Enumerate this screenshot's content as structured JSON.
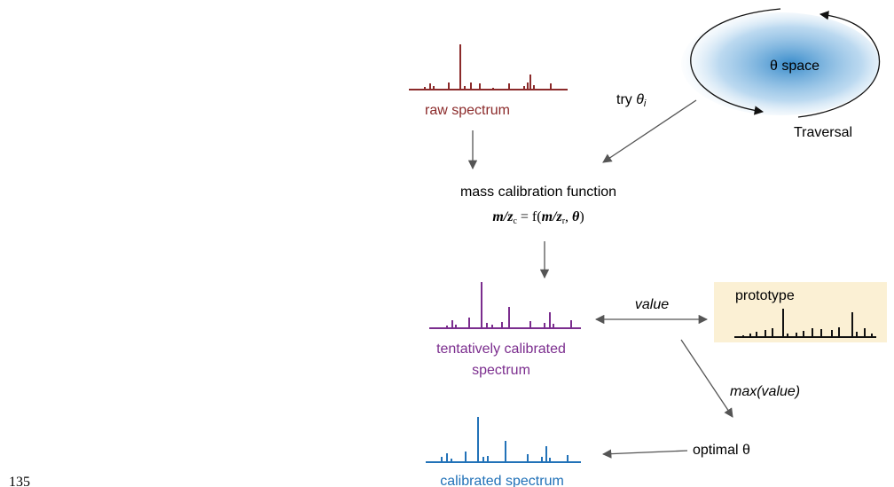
{
  "raw_label": "raw spectrum",
  "try_label": {
    "text": "try",
    "symbol": "θ",
    "subscript": "i"
  },
  "space_label": "θ space",
  "traversal_label": "Traversal",
  "function_label": "mass calibration function",
  "formula": [
    "m/z",
    "c",
    " = f(",
    "m/z",
    "r",
    ", ",
    "θ",
    ")"
  ],
  "value_label": "value",
  "prototype_label": "prototype",
  "tentative_label": [
    "tentatively calibrated",
    "spectrum"
  ],
  "max_label": "max(value)",
  "optimal_label": "optimal θ",
  "calibrated_label": "calibrated spectrum",
  "page_number": "135"
}
